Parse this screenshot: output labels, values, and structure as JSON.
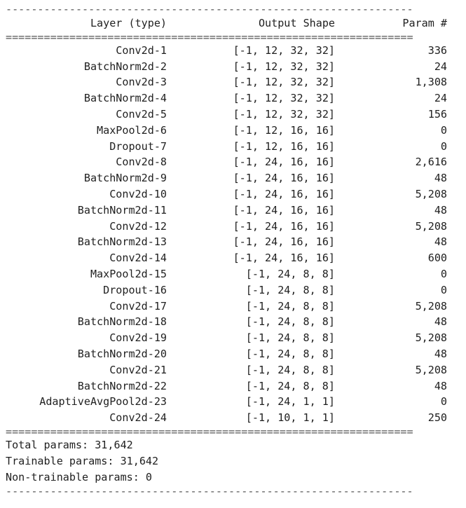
{
  "summary": {
    "rule_dash": "----------------------------------------------------------------",
    "rule_eq": "================================================================",
    "header": {
      "layer": "Layer (type)",
      "output_shape": "Output Shape",
      "param": "Param #"
    },
    "rows": [
      {
        "layer": "Conv2d-1",
        "shape": "[-1, 12, 32, 32]",
        "param": "336"
      },
      {
        "layer": "BatchNorm2d-2",
        "shape": "[-1, 12, 32, 32]",
        "param": "24"
      },
      {
        "layer": "Conv2d-3",
        "shape": "[-1, 12, 32, 32]",
        "param": "1,308"
      },
      {
        "layer": "BatchNorm2d-4",
        "shape": "[-1, 12, 32, 32]",
        "param": "24"
      },
      {
        "layer": "Conv2d-5",
        "shape": "[-1, 12, 32, 32]",
        "param": "156"
      },
      {
        "layer": "MaxPool2d-6",
        "shape": "[-1, 12, 16, 16]",
        "param": "0"
      },
      {
        "layer": "Dropout-7",
        "shape": "[-1, 12, 16, 16]",
        "param": "0"
      },
      {
        "layer": "Conv2d-8",
        "shape": "[-1, 24, 16, 16]",
        "param": "2,616"
      },
      {
        "layer": "BatchNorm2d-9",
        "shape": "[-1, 24, 16, 16]",
        "param": "48"
      },
      {
        "layer": "Conv2d-10",
        "shape": "[-1, 24, 16, 16]",
        "param": "5,208"
      },
      {
        "layer": "BatchNorm2d-11",
        "shape": "[-1, 24, 16, 16]",
        "param": "48"
      },
      {
        "layer": "Conv2d-12",
        "shape": "[-1, 24, 16, 16]",
        "param": "5,208"
      },
      {
        "layer": "BatchNorm2d-13",
        "shape": "[-1, 24, 16, 16]",
        "param": "48"
      },
      {
        "layer": "Conv2d-14",
        "shape": "[-1, 24, 16, 16]",
        "param": "600"
      },
      {
        "layer": "MaxPool2d-15",
        "shape": "[-1, 24, 8, 8]",
        "param": "0"
      },
      {
        "layer": "Dropout-16",
        "shape": "[-1, 24, 8, 8]",
        "param": "0"
      },
      {
        "layer": "Conv2d-17",
        "shape": "[-1, 24, 8, 8]",
        "param": "5,208"
      },
      {
        "layer": "BatchNorm2d-18",
        "shape": "[-1, 24, 8, 8]",
        "param": "48"
      },
      {
        "layer": "Conv2d-19",
        "shape": "[-1, 24, 8, 8]",
        "param": "5,208"
      },
      {
        "layer": "BatchNorm2d-20",
        "shape": "[-1, 24, 8, 8]",
        "param": "48"
      },
      {
        "layer": "Conv2d-21",
        "shape": "[-1, 24, 8, 8]",
        "param": "5,208"
      },
      {
        "layer": "BatchNorm2d-22",
        "shape": "[-1, 24, 8, 8]",
        "param": "48"
      },
      {
        "layer": "AdaptiveAvgPool2d-23",
        "shape": "[-1, 24, 1, 1]",
        "param": "0"
      },
      {
        "layer": "Conv2d-24",
        "shape": "[-1, 10, 1, 1]",
        "param": "250"
      }
    ],
    "totals": {
      "total": "Total params: 31,642",
      "trainable": "Trainable params: 31,642",
      "non_trainable": "Non-trainable params: 0"
    }
  }
}
